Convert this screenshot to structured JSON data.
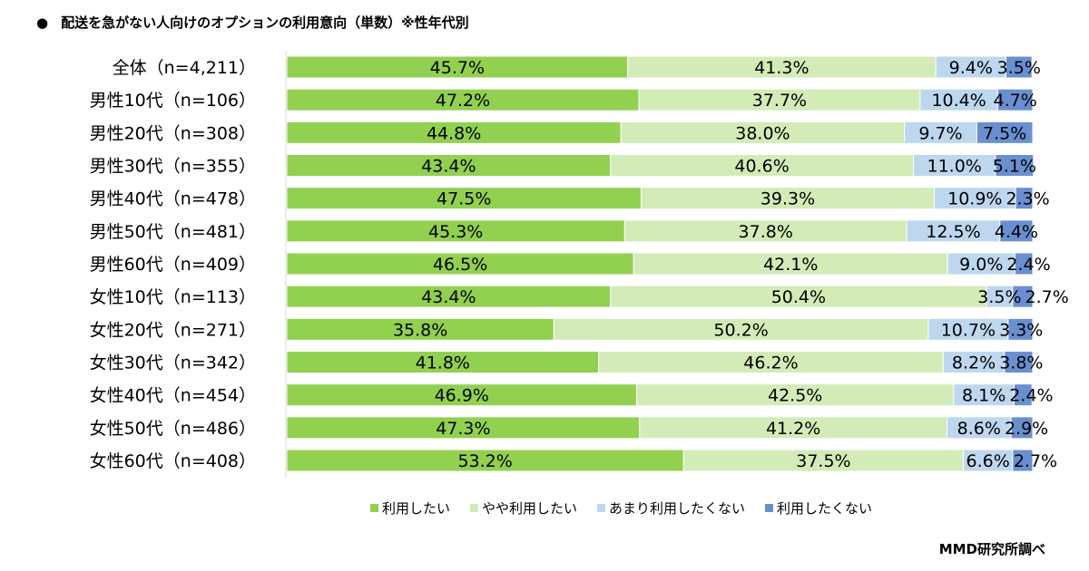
{
  "title": "配送を急がない人向けのオプションの利用意向（単数）※性年代別",
  "footer": "MMD研究所調べ",
  "chart_data": {
    "type": "bar",
    "orientation": "horizontal",
    "stacked": true,
    "xlim": [
      0,
      100
    ],
    "grid": false,
    "legend_placement": "bottom",
    "categories": [
      "全体（n=4,211）",
      "男性10代（n=106）",
      "男性20代（n=308）",
      "男性30代（n=355）",
      "男性40代（n=478）",
      "男性50代（n=481）",
      "男性60代（n=409）",
      "女性10代（n=113）",
      "女性20代（n=271）",
      "女性30代（n=342）",
      "女性40代（n=454）",
      "女性50代（n=486）",
      "女性60代（n=408）"
    ],
    "series": [
      {
        "name": "利用したい",
        "color": "#92d050",
        "values": [
          45.7,
          47.2,
          44.8,
          43.4,
          47.5,
          45.3,
          46.5,
          43.4,
          35.8,
          41.8,
          46.9,
          47.3,
          53.2
        ]
      },
      {
        "name": "やや利用したい",
        "color": "#d3ebb7",
        "values": [
          41.3,
          37.7,
          38.0,
          40.6,
          39.3,
          37.8,
          42.1,
          50.4,
          50.2,
          46.2,
          42.5,
          41.2,
          37.5
        ]
      },
      {
        "name": "あまり利用したくない",
        "color": "#bdd7ee",
        "values": [
          9.4,
          10.4,
          9.7,
          11.0,
          10.9,
          12.5,
          9.0,
          3.5,
          10.7,
          8.2,
          8.1,
          8.6,
          6.6
        ]
      },
      {
        "name": "利用したくない",
        "color": "#6a8fd0",
        "values": [
          3.5,
          4.7,
          7.5,
          5.1,
          2.3,
          4.4,
          2.4,
          2.7,
          3.3,
          3.8,
          2.4,
          2.9,
          2.7
        ]
      }
    ]
  }
}
